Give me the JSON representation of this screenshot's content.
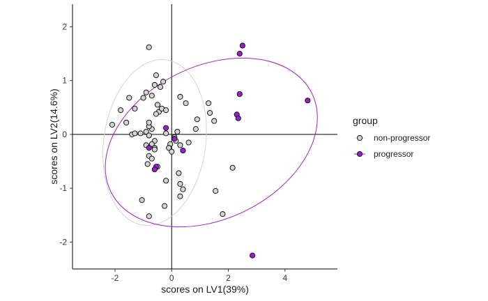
{
  "chart_data": {
    "type": "scatter",
    "title": "",
    "xlabel": "scores on LV1(39%)",
    "ylabel": "scores on LV2(14.6%)",
    "xlim": [
      -3.5,
      5.85
    ],
    "ylim": [
      -2.5,
      2.42
    ],
    "x_ticks": [
      -2,
      0,
      2,
      4
    ],
    "y_ticks": [
      -2,
      -1,
      0,
      1,
      2
    ],
    "grid": false,
    "zero_lines": true,
    "legend": {
      "title": "group",
      "position": "right"
    },
    "series": [
      {
        "name": "non-progressor",
        "color": "#d3d3d3",
        "ellipse_color": "#d3d3d3",
        "ellipse": {
          "center": [
            -0.6,
            -0.15
          ],
          "rx": 1.8,
          "ry": 1.55,
          "angle_deg": -8
        },
        "points": [
          [
            -0.8,
            1.62
          ],
          [
            -1.5,
            0.68
          ],
          [
            -1.3,
            0.48
          ],
          [
            -1.8,
            0.45
          ],
          [
            -1.6,
            0.22
          ],
          [
            -2.1,
            0.18
          ],
          [
            -0.55,
            1.1
          ],
          [
            -0.6,
            0.92
          ],
          [
            -0.4,
            0.88
          ],
          [
            -0.9,
            0.78
          ],
          [
            -1.0,
            0.68
          ],
          [
            -0.7,
            0.72
          ],
          [
            -0.3,
            0.98
          ],
          [
            -0.5,
            0.55
          ],
          [
            -0.45,
            0.42
          ],
          [
            -0.35,
            0.48
          ],
          [
            -0.2,
            0.45
          ],
          [
            -0.55,
            0.38
          ],
          [
            0.5,
            0.58
          ],
          [
            0.3,
            0.7
          ],
          [
            0.85,
            0.1
          ],
          [
            0.9,
            0.28
          ],
          [
            1.3,
            0.58
          ],
          [
            1.35,
            0.4
          ],
          [
            1.5,
            0.25
          ],
          [
            -1.4,
            0.0
          ],
          [
            -1.3,
            0.02
          ],
          [
            -1.1,
            0.02
          ],
          [
            -0.9,
            0.05
          ],
          [
            -0.8,
            -0.02
          ],
          [
            -0.7,
            0.1
          ],
          [
            -0.8,
            0.15
          ],
          [
            -0.8,
            0.22
          ],
          [
            -0.2,
            0.02
          ],
          [
            0.2,
            0.05
          ],
          [
            0.1,
            -0.05
          ],
          [
            0.15,
            -0.12
          ],
          [
            -0.6,
            -0.12
          ],
          [
            -0.7,
            -0.18
          ],
          [
            -0.9,
            -0.2
          ],
          [
            -0.6,
            -0.25
          ],
          [
            -0.6,
            -0.28
          ],
          [
            -0.05,
            -0.18
          ],
          [
            -0.1,
            -0.25
          ],
          [
            0.0,
            -0.32
          ],
          [
            0.3,
            -0.2
          ],
          [
            0.6,
            -0.15
          ],
          [
            -0.8,
            -0.4
          ],
          [
            -0.7,
            -0.45
          ],
          [
            -0.85,
            -0.55
          ],
          [
            -0.5,
            -0.6
          ],
          [
            -0.6,
            -0.65
          ],
          [
            0.25,
            -0.72
          ],
          [
            -0.2,
            -0.86
          ],
          [
            0.3,
            -0.92
          ],
          [
            0.4,
            -1.02
          ],
          [
            0.3,
            -1.15
          ],
          [
            1.55,
            -1.05
          ],
          [
            -1.05,
            -1.22
          ],
          [
            -0.25,
            -1.33
          ],
          [
            -0.8,
            -1.52
          ],
          [
            1.8,
            -1.48
          ],
          [
            2.15,
            -0.62
          ]
        ]
      },
      {
        "name": "progressor",
        "color": "#9a1fcf",
        "ellipse_color": "#a020c8",
        "ellipse": {
          "center": [
            1.4,
            -0.15
          ],
          "rx": 3.95,
          "ry": 1.42,
          "angle_deg": 26
        },
        "points": [
          [
            2.5,
            1.65
          ],
          [
            2.4,
            1.5
          ],
          [
            2.4,
            0.75
          ],
          [
            2.3,
            0.37
          ],
          [
            2.35,
            0.3
          ],
          [
            4.8,
            0.63
          ],
          [
            -0.2,
            0.12
          ],
          [
            0.1,
            -0.08
          ],
          [
            0.4,
            -0.3
          ],
          [
            -0.8,
            -0.25
          ],
          [
            -0.55,
            -0.6
          ],
          [
            -0.6,
            -0.65
          ],
          [
            2.85,
            -2.25
          ]
        ]
      }
    ]
  }
}
